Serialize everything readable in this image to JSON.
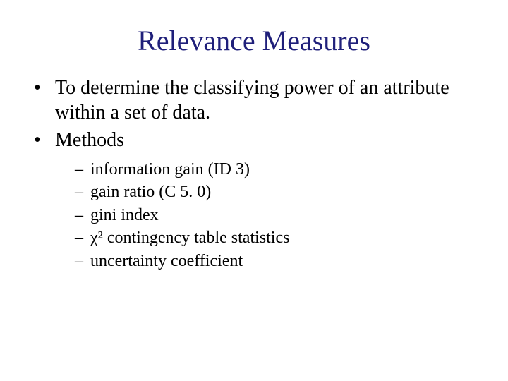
{
  "title": "Relevance Measures",
  "title_color": "#1f1f7a",
  "background_color": "#ffffff",
  "text_color": "#000000",
  "font_family": "Times New Roman",
  "title_fontsize": 40,
  "body_fontsize": 28,
  "sub_fontsize": 24,
  "bullets": [
    {
      "text": "To determine the classifying power of an attribute within a set of data.",
      "children": []
    },
    {
      "text": "Methods",
      "children": [
        "information gain (ID 3)",
        "gain ratio (C 5. 0)",
        "gini index",
        "χ² contingency table statistics",
        "uncertainty coefficient"
      ]
    }
  ]
}
